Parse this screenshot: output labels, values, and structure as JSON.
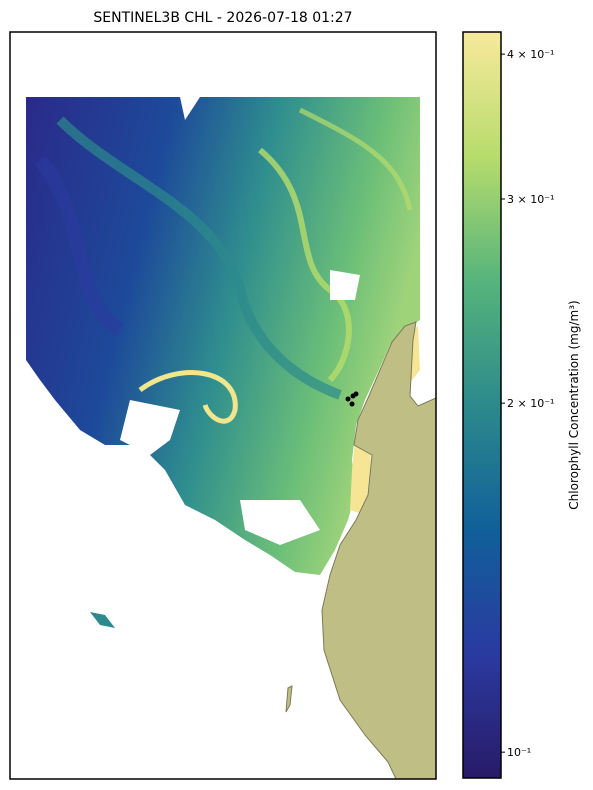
{
  "title": "SENTINEL3B CHL - 2026-07-18 01:27",
  "colorbar": {
    "label": "Chlorophyll Concentration (mg/m³)",
    "scale": "log",
    "lim": [
      0.095,
      0.418
    ],
    "colors": [
      "#281b68",
      "#2b3aa0",
      "#10609a",
      "#2c8a8c",
      "#56b47c",
      "#b7dc6c",
      "#f8e99c"
    ],
    "ticks": [
      {
        "value": 0.1,
        "label": "10⁻¹"
      },
      {
        "value": 0.2,
        "label": "2 × 10⁻¹"
      },
      {
        "value": 0.3,
        "label": "3 × 10⁻¹"
      },
      {
        "value": 0.4,
        "label": "4 × 10⁻¹"
      }
    ]
  }
}
